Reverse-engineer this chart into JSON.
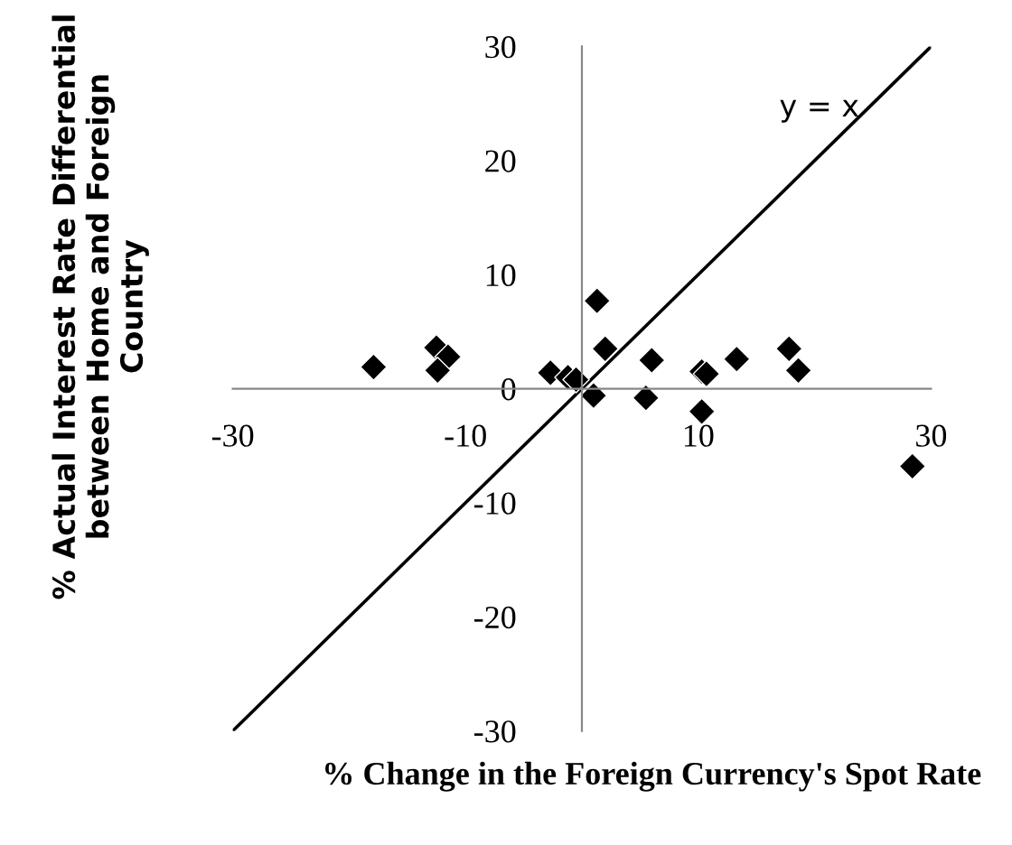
{
  "chart_data": {
    "type": "scatter",
    "xlabel": "% Change in the Foreign Currency's Spot Rate",
    "ylabel": "% Actual Interest Rate Differential between Home and Foreign Country",
    "xlim": [
      -30,
      30
    ],
    "ylim": [
      -30,
      30
    ],
    "xticks": [
      -30,
      -10,
      10,
      30
    ],
    "yticks": [
      -30,
      -20,
      -10,
      0,
      10,
      20,
      30
    ],
    "grid": false,
    "series": [
      {
        "marker": "diamond",
        "color": "#000000",
        "x": [
          -17.9,
          -12.5,
          -11.5,
          -12.4,
          -2.7,
          -1.2,
          -0.5,
          1.3,
          2.0,
          1.0,
          6.0,
          5.5,
          10.3,
          10.7,
          10.3,
          13.3,
          17.8,
          18.6,
          28.4
        ],
        "values": [
          1.9,
          3.6,
          2.8,
          1.6,
          1.4,
          1.0,
          0.8,
          7.7,
          3.5,
          -0.6,
          2.5,
          -0.8,
          1.5,
          1.3,
          -2.0,
          2.6,
          3.5,
          1.6,
          -6.8
        ]
      },
      {
        "type": "line",
        "marker": "none",
        "color": "#000000",
        "x": [
          -30,
          30
        ],
        "values": [
          -30,
          30
        ]
      }
    ],
    "annotations": [
      "y = x"
    ]
  }
}
